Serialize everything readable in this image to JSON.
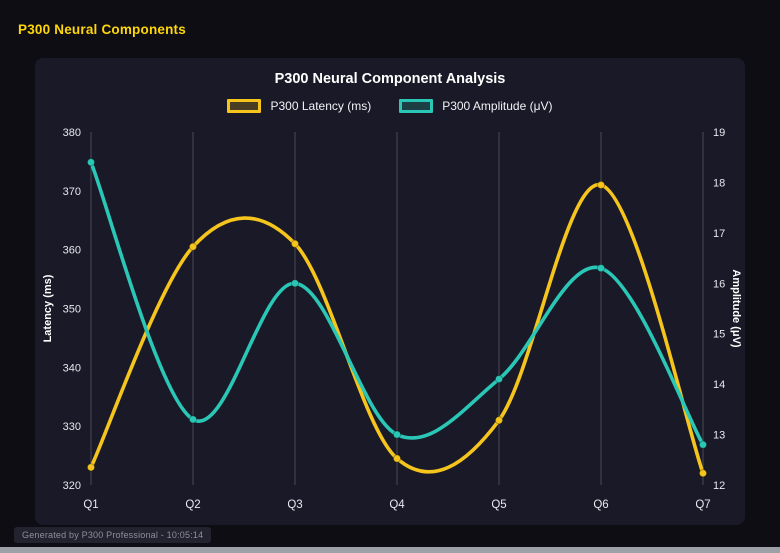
{
  "page": {
    "heading": "P300 Neural Components",
    "footer": "Generated by P300 Professional - 10:05:14"
  },
  "chart_data": {
    "type": "line",
    "title": "P300 Neural Component Analysis",
    "categories": [
      "Q1",
      "Q2",
      "Q3",
      "Q4",
      "Q5",
      "Q6",
      "Q7"
    ],
    "series": [
      {
        "name": "P300 Latency (ms)",
        "axis": "left",
        "color": "#f5c51d",
        "values": [
          323,
          360.5,
          361,
          324.5,
          331,
          371,
          322
        ]
      },
      {
        "name": "P300 Amplitude (μV)",
        "axis": "right",
        "color": "#2bc7b6",
        "values": [
          18.4,
          13.3,
          16.0,
          13.0,
          14.1,
          16.3,
          12.8
        ]
      }
    ],
    "left_axis": {
      "label": "Latency (ms)",
      "min": 320,
      "max": 380,
      "step": 10
    },
    "right_axis": {
      "label": "Amplitude (μV)",
      "min": 12,
      "max": 19,
      "step": 1
    },
    "grid": {
      "vertical": true,
      "horizontal": false
    },
    "legend_position": "top",
    "colors": {
      "grid_line": "rgba(255,255,255,0.22)",
      "tick_text": "#e8e8f0",
      "axis_title_text": "#ffffff"
    }
  }
}
